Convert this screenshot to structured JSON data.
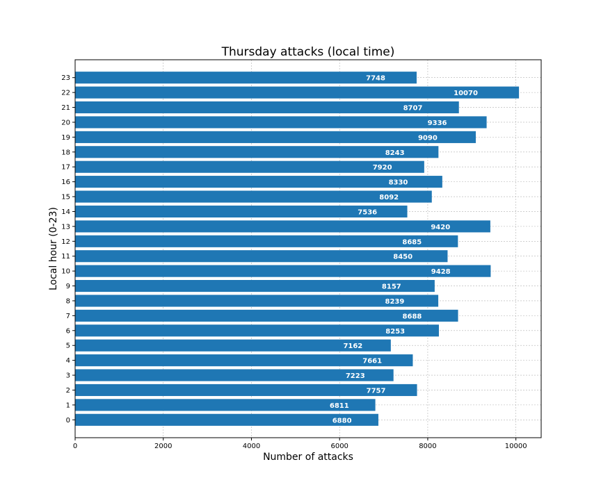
{
  "chart_data": {
    "type": "bar",
    "orientation": "horizontal",
    "title": "Thursday attacks (local time)",
    "xlabel": "Number of attacks",
    "ylabel": "Local hour (0-23)",
    "categories": [
      "0",
      "1",
      "2",
      "3",
      "4",
      "5",
      "6",
      "7",
      "8",
      "9",
      "10",
      "11",
      "12",
      "13",
      "14",
      "15",
      "16",
      "17",
      "18",
      "19",
      "20",
      "21",
      "22",
      "23"
    ],
    "values": [
      6880,
      6811,
      7757,
      7223,
      7661,
      7162,
      8253,
      8688,
      8239,
      8157,
      9428,
      8450,
      8685,
      9420,
      7536,
      8092,
      8330,
      7920,
      8243,
      9090,
      9336,
      8707,
      10070,
      7748
    ],
    "xticks": [
      0,
      2000,
      4000,
      6000,
      8000,
      10000
    ],
    "xlim": [
      0,
      10573.5
    ],
    "ylim": [
      -1.2,
      24.2
    ],
    "grid": true,
    "bar_color": "#1f77b4",
    "label_color": "#ffffff"
  }
}
